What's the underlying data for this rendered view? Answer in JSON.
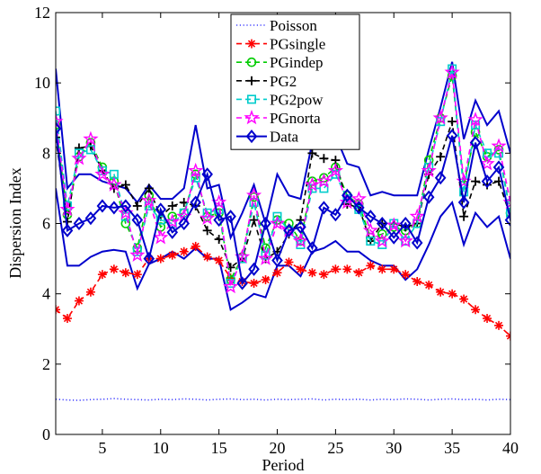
{
  "chart_data": {
    "type": "line",
    "xlabel": "Period",
    "ylabel": "Dispersion Index",
    "xlim": [
      1,
      40
    ],
    "ylim": [
      0,
      12
    ],
    "xticks": [
      5,
      10,
      15,
      20,
      25,
      30,
      35,
      40
    ],
    "yticks": [
      0,
      2,
      4,
      6,
      8,
      10,
      12
    ],
    "legend_position": "top-center",
    "grid": false,
    "x": [
      1,
      2,
      3,
      4,
      5,
      6,
      7,
      8,
      9,
      10,
      11,
      12,
      13,
      14,
      15,
      16,
      17,
      18,
      19,
      20,
      21,
      22,
      23,
      24,
      25,
      26,
      27,
      28,
      29,
      30,
      31,
      32,
      33,
      34,
      35,
      36,
      37,
      38,
      39,
      40
    ],
    "series": [
      {
        "name": "Poisson",
        "color": "#4040ff",
        "style": "dotted",
        "marker": "none",
        "values": [
          1.0,
          0.98,
          0.97,
          0.99,
          1.0,
          1.02,
          1.0,
          0.99,
          0.98,
          1.0,
          0.99,
          1.01,
          1.0,
          0.98,
          1.0,
          1.01,
          0.99,
          1.0,
          0.98,
          1.0,
          0.99,
          1.0,
          1.01,
          0.98,
          1.0,
          0.99,
          1.0,
          0.98,
          1.0,
          0.99,
          1.01,
          1.0,
          0.98,
          1.0,
          1.01,
          0.99,
          1.0,
          0.98,
          1.0,
          0.99
        ]
      },
      {
        "name": "PGsingle",
        "color": "#ff0000",
        "style": "dashed",
        "marker": "star",
        "values": [
          3.55,
          3.3,
          3.8,
          4.05,
          4.55,
          4.7,
          4.6,
          4.55,
          5.0,
          5.0,
          5.1,
          5.2,
          5.35,
          5.05,
          4.95,
          4.45,
          4.35,
          4.3,
          4.4,
          4.6,
          4.9,
          4.7,
          4.6,
          4.55,
          4.7,
          4.7,
          4.6,
          4.8,
          4.7,
          4.7,
          4.55,
          4.35,
          4.25,
          4.05,
          4.0,
          3.85,
          3.55,
          3.3,
          3.1,
          2.8
        ]
      },
      {
        "name": "PGindep",
        "color": "#00cc00",
        "style": "dashed",
        "marker": "circle",
        "values": [
          8.8,
          6.25,
          7.9,
          8.3,
          7.6,
          7.2,
          6.0,
          5.3,
          6.8,
          5.9,
          6.2,
          6.3,
          7.4,
          6.2,
          6.3,
          4.4,
          5.05,
          6.75,
          5.3,
          6.1,
          6.0,
          5.5,
          7.2,
          7.3,
          7.6,
          6.8,
          6.55,
          5.6,
          5.7,
          5.9,
          5.8,
          6.0,
          7.8,
          9.0,
          10.2,
          7.1,
          8.6,
          7.9,
          8.1,
          6.3
        ]
      },
      {
        "name": "PG2",
        "color": "#000000",
        "style": "dashed",
        "marker": "plus",
        "values": [
          8.45,
          6.05,
          8.15,
          8.2,
          7.5,
          7.0,
          7.1,
          6.5,
          7.0,
          6.2,
          6.5,
          6.6,
          6.5,
          5.8,
          5.55,
          4.75,
          5.0,
          6.1,
          5.0,
          5.2,
          5.7,
          6.1,
          8.0,
          7.85,
          7.8,
          6.55,
          6.45,
          5.5,
          6.0,
          6.0,
          5.9,
          6.0,
          7.4,
          7.9,
          8.9,
          6.2,
          7.2,
          7.1,
          7.2,
          6.2
        ]
      },
      {
        "name": "PG2pow",
        "color": "#00cccc",
        "style": "dashed",
        "marker": "square",
        "values": [
          9.2,
          6.5,
          8.0,
          8.1,
          7.5,
          7.4,
          6.2,
          5.2,
          6.5,
          6.1,
          6.0,
          6.3,
          7.3,
          6.3,
          6.4,
          4.3,
          5.0,
          6.6,
          5.1,
          6.2,
          5.8,
          5.4,
          7.0,
          7.0,
          7.4,
          6.7,
          6.4,
          5.5,
          5.4,
          6.0,
          5.5,
          6.0,
          7.6,
          8.9,
          10.4,
          6.9,
          8.8,
          8.0,
          8.0,
          6.3
        ]
      },
      {
        "name": "PGnorta",
        "color": "#ff00ff",
        "style": "dashed",
        "marker": "pentagram",
        "values": [
          8.9,
          6.4,
          7.85,
          8.4,
          7.4,
          7.1,
          6.3,
          5.1,
          6.65,
          5.6,
          6.05,
          6.2,
          7.5,
          6.15,
          6.6,
          4.2,
          5.05,
          6.8,
          5.0,
          6.0,
          5.8,
          5.5,
          7.1,
          7.2,
          7.5,
          6.6,
          6.7,
          5.8,
          5.5,
          5.95,
          5.5,
          6.2,
          7.5,
          9.0,
          10.3,
          7.2,
          8.95,
          7.7,
          8.2,
          6.6
        ]
      },
      {
        "name": "Data",
        "color": "#0000cc",
        "style": "solid",
        "marker": "diamond",
        "values": [
          8.7,
          5.8,
          6.0,
          6.15,
          6.5,
          6.45,
          6.5,
          6.1,
          5.0,
          6.4,
          5.75,
          6.0,
          6.6,
          7.4,
          6.1,
          6.2,
          4.3,
          4.7,
          6.0,
          4.95,
          5.8,
          5.9,
          5.3,
          6.45,
          6.25,
          6.8,
          6.45,
          6.2,
          6.0,
          5.6,
          6.0,
          5.45,
          6.75,
          7.3,
          8.5,
          6.6,
          8.3,
          7.2,
          7.6,
          6.1
        ]
      }
    ],
    "bands": [
      {
        "color": "#0000cc",
        "values": [
          10.4,
          7.0,
          7.4,
          7.4,
          7.2,
          7.1,
          7.0,
          6.6,
          7.1,
          6.7,
          6.7,
          7.0,
          8.8,
          7.0,
          7.1,
          5.6,
          6.3,
          7.1,
          6.0,
          7.4,
          6.8,
          6.7,
          8.3,
          8.2,
          8.5,
          7.7,
          7.6,
          6.8,
          6.9,
          6.8,
          6.8,
          6.8,
          8.1,
          9.3,
          10.6,
          8.4,
          9.5,
          8.8,
          9.2,
          8.0
        ]
      },
      {
        "color": "#0000cc",
        "values": [
          7.0,
          4.8,
          4.8,
          5.05,
          5.2,
          5.25,
          5.2,
          4.15,
          4.85,
          5.0,
          5.2,
          5.0,
          5.3,
          5.0,
          5.0,
          3.55,
          3.75,
          4.0,
          3.9,
          4.8,
          4.8,
          4.5,
          5.2,
          5.3,
          5.5,
          5.2,
          5.2,
          4.95,
          4.8,
          4.8,
          4.4,
          4.7,
          5.4,
          6.2,
          6.6,
          5.4,
          6.3,
          5.9,
          6.2,
          5.0
        ]
      }
    ]
  }
}
